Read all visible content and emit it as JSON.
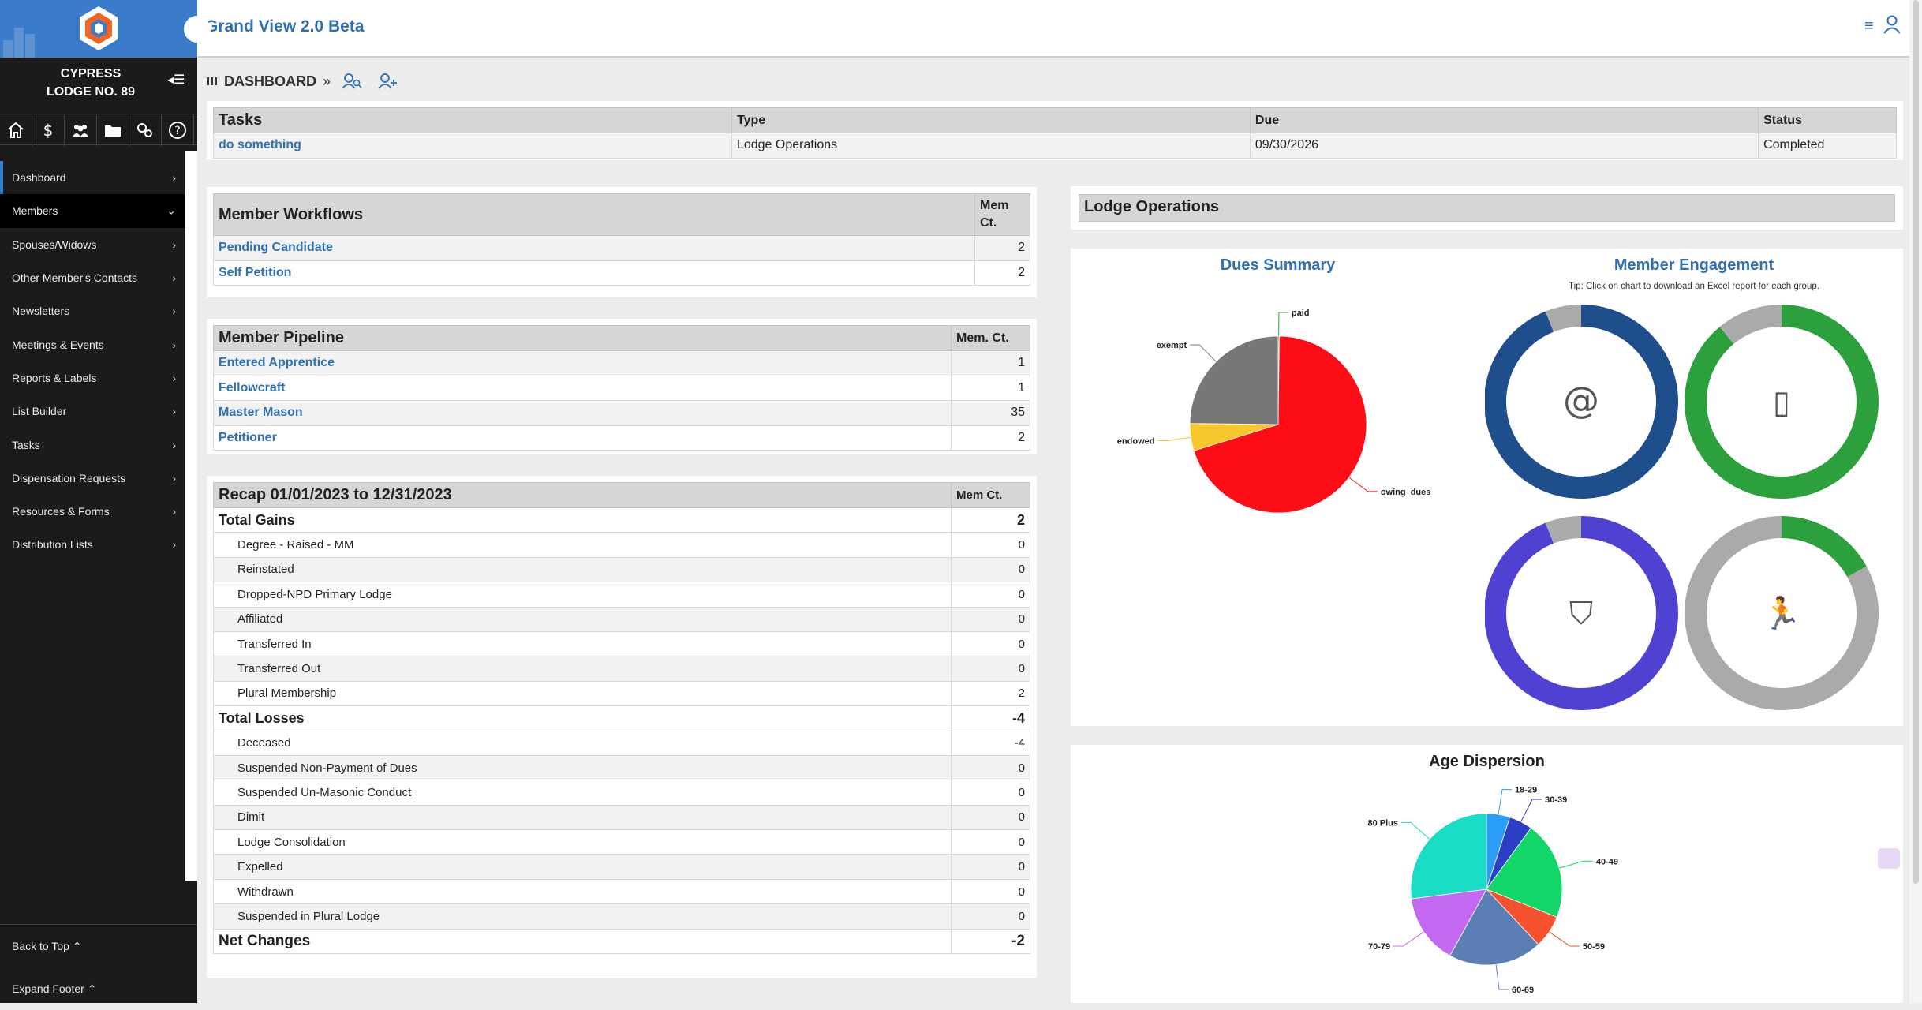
{
  "app": {
    "title": "Grand View 2.0 Beta"
  },
  "lodge": {
    "line1": "CYPRESS",
    "line2": "LODGE NO. 89"
  },
  "icons": {
    "row": [
      "home-icon",
      "dollar-icon",
      "members-icon",
      "folder-icon",
      "settings-icon",
      "help-icon"
    ],
    "header": [
      "menu-icon",
      "user-icon"
    ]
  },
  "nav": [
    {
      "label": "Dashboard"
    },
    {
      "label": "Members"
    },
    {
      "label": "Spouses/Widows"
    },
    {
      "label": "Other Member's Contacts"
    },
    {
      "label": "Newsletters"
    },
    {
      "label": "Meetings & Events"
    },
    {
      "label": "Reports & Labels"
    },
    {
      "label": "List Builder"
    },
    {
      "label": "Tasks"
    },
    {
      "label": "Dispensation Requests"
    },
    {
      "label": "Resources & Forms"
    },
    {
      "label": "Distribution Lists"
    }
  ],
  "sidebar_bottom": {
    "back_to_top": "Back to Top",
    "expand_footer": "Expand Footer"
  },
  "breadcrumb": {
    "label": "DASHBOARD"
  },
  "tasks": {
    "headers": [
      "Tasks",
      "Type",
      "Due",
      "Status"
    ],
    "rows": [
      {
        "task": "do something",
        "type": "Lodge Operations",
        "due": "09/30/2026",
        "status": "Completed"
      }
    ]
  },
  "workflows": {
    "title": "Member Workflows",
    "count_header_1": "Mem",
    "count_header_2": "Ct.",
    "rows": [
      {
        "name": "Pending Candidate",
        "count": "2"
      },
      {
        "name": "Self Petition",
        "count": "2"
      }
    ]
  },
  "pipeline": {
    "title": "Member Pipeline",
    "count_header": "Mem. Ct.",
    "rows": [
      {
        "name": "Entered Apprentice",
        "count": "1"
      },
      {
        "name": "Fellowcraft",
        "count": "1"
      },
      {
        "name": "Master Mason",
        "count": "35"
      },
      {
        "name": "Petitioner",
        "count": "2"
      }
    ]
  },
  "recap": {
    "title": "Recap 01/01/2023 to 12/31/2023",
    "count_header": "Mem Ct.",
    "total_gains": {
      "label": "Total Gains",
      "value": "2"
    },
    "gains": [
      {
        "label": "Degree - Raised - MM",
        "value": "0"
      },
      {
        "label": "Reinstated",
        "value": "0"
      },
      {
        "label": "Dropped-NPD Primary Lodge",
        "value": "0"
      },
      {
        "label": "Affiliated",
        "value": "0"
      },
      {
        "label": "Transferred In",
        "value": "0"
      },
      {
        "label": "Transferred Out",
        "value": "0"
      },
      {
        "label": "Plural Membership",
        "value": "2"
      }
    ],
    "total_losses": {
      "label": "Total Losses",
      "value": "-4"
    },
    "losses": [
      {
        "label": "Deceased",
        "value": "-4"
      },
      {
        "label": "Suspended Non-Payment of Dues",
        "value": "0"
      },
      {
        "label": "Suspended Un-Masonic Conduct",
        "value": "0"
      },
      {
        "label": "Dimit",
        "value": "0"
      },
      {
        "label": "Lodge Consolidation",
        "value": "0"
      },
      {
        "label": "Expelled",
        "value": "0"
      },
      {
        "label": "Withdrawn",
        "value": "0"
      },
      {
        "label": "Suspended in Plural Lodge",
        "value": "0"
      }
    ],
    "net_changes": {
      "label": "Net Changes",
      "value": "-2"
    }
  },
  "ops": {
    "title": "Lodge Operations"
  },
  "engagement": {
    "title": "Member Engagement",
    "tip": "Tip: Click on chart to download an Excel report for each group."
  },
  "chart_data": [
    {
      "type": "pie",
      "title": "Dues Summary",
      "categories": [
        "paid",
        "owing_dues",
        "endowed",
        "exempt"
      ],
      "values": [
        0.2,
        70,
        5,
        24.8
      ],
      "colors": [
        "#2ca02c",
        "#ff0d17",
        "#f6c82b",
        "#777777"
      ]
    },
    {
      "type": "pie",
      "title": "Member Engagement",
      "donut": true,
      "groups": [
        {
          "icon": "email-icon",
          "values": [
            94,
            6
          ],
          "colors": [
            "#1f4e8c",
            "#aaaaaa"
          ]
        },
        {
          "icon": "mobile-icon",
          "values": [
            89,
            11
          ],
          "colors": [
            "#2ca03c",
            "#aaaaaa"
          ]
        },
        {
          "icon": "map-icon",
          "values": [
            94,
            6
          ],
          "colors": [
            "#4f42d2",
            "#aaaaaa"
          ]
        },
        {
          "icon": "activity-icon",
          "values": [
            17,
            83
          ],
          "colors": [
            "#2ca03c",
            "#aaaaaa"
          ]
        }
      ]
    },
    {
      "type": "pie",
      "title": "Age Dispersion",
      "categories": [
        "18-29",
        "30-39",
        "40-49",
        "50-59",
        "60-69",
        "70-79",
        "80 Plus"
      ],
      "values": [
        5,
        5,
        21,
        7,
        20,
        15,
        27
      ],
      "colors": [
        "#2a9df4",
        "#2b3fc4",
        "#13d669",
        "#f4512c",
        "#5b7fb5",
        "#c468f2",
        "#18dcc4"
      ]
    }
  ]
}
